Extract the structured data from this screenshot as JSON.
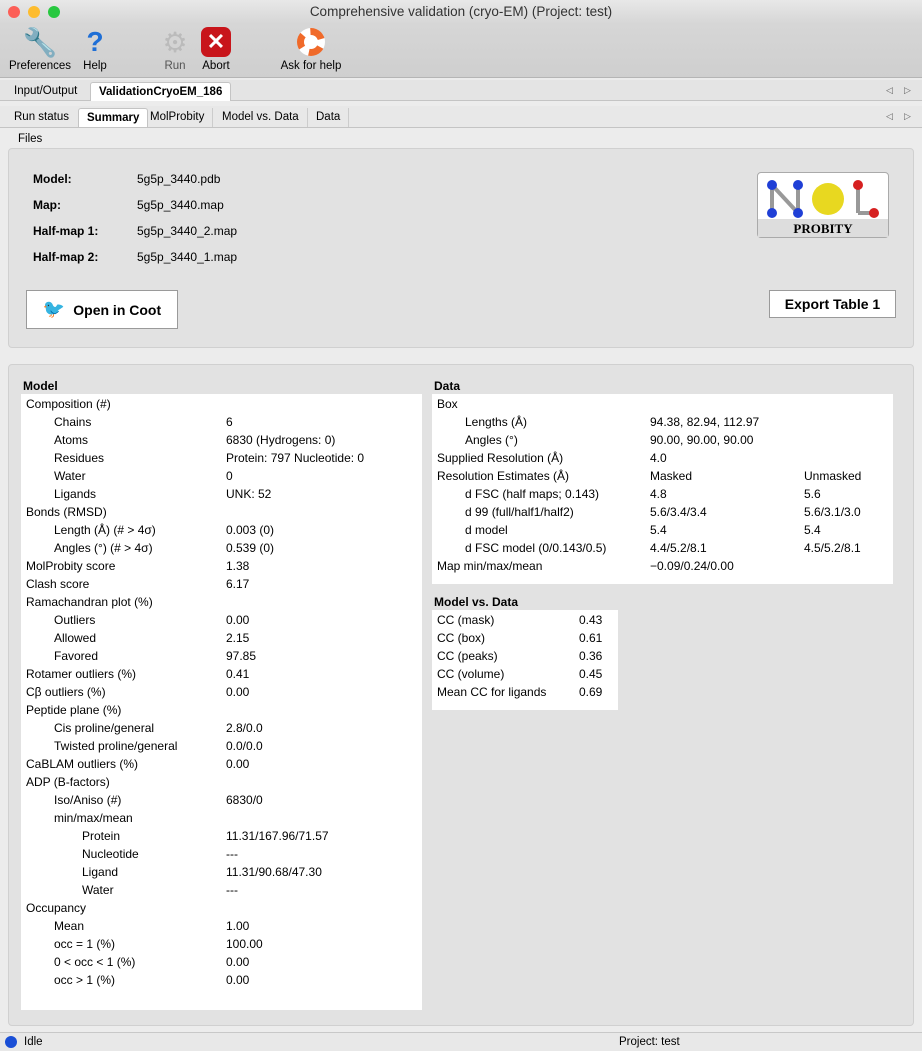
{
  "window": {
    "title": "Comprehensive validation (cryo-EM) (Project: test)"
  },
  "toolbar": {
    "preferences": "Preferences",
    "help": "Help",
    "run": "Run",
    "abort": "Abort",
    "ask": "Ask for help"
  },
  "outer_tabs": [
    "Input/Output",
    "ValidationCryoEM_186"
  ],
  "inner_tabs": [
    "Run status",
    "Summary",
    "MolProbity",
    "Model vs. Data",
    "Data"
  ],
  "files": {
    "title": "Files",
    "rows": [
      [
        "Model:",
        "5g5p_3440.pdb"
      ],
      [
        "Map:",
        "5g5p_3440.map"
      ],
      [
        "Half-map 1:",
        "5g5p_3440_2.map"
      ],
      [
        "Half-map 2:",
        "5g5p_3440_1.map"
      ]
    ],
    "open_coot": "Open in Coot",
    "export": "Export Table 1",
    "logo": "MolProbity"
  },
  "model": {
    "title": "Model",
    "rows": [
      [
        0,
        "Composition (#)",
        ""
      ],
      [
        1,
        "Chains",
        "6"
      ],
      [
        1,
        "Atoms",
        "6830 (Hydrogens: 0)"
      ],
      [
        1,
        "Residues",
        "Protein: 797 Nucleotide: 0"
      ],
      [
        1,
        "Water",
        "0"
      ],
      [
        1,
        "Ligands",
        "UNK: 52"
      ],
      [
        0,
        "Bonds (RMSD)",
        ""
      ],
      [
        1,
        "Length (Å) (# > 4σ)",
        "0.003 (0)"
      ],
      [
        1,
        "Angles (°) (# > 4σ)",
        "0.539 (0)"
      ],
      [
        0,
        "MolProbity score",
        "1.38"
      ],
      [
        0,
        "Clash score",
        "6.17"
      ],
      [
        0,
        "Ramachandran plot (%)",
        ""
      ],
      [
        1,
        "Outliers",
        "0.00"
      ],
      [
        1,
        "Allowed",
        "2.15"
      ],
      [
        1,
        "Favored",
        "97.85"
      ],
      [
        0,
        "Rotamer outliers (%)",
        "0.41"
      ],
      [
        0,
        "Cβ outliers (%)",
        "0.00"
      ],
      [
        0,
        "Peptide plane (%)",
        ""
      ],
      [
        1,
        "Cis proline/general",
        "2.8/0.0"
      ],
      [
        1,
        "Twisted proline/general",
        "0.0/0.0"
      ],
      [
        0,
        "CaBLAM outliers (%)",
        "0.00"
      ],
      [
        0,
        "ADP (B-factors)",
        ""
      ],
      [
        1,
        "Iso/Aniso (#)",
        "6830/0"
      ],
      [
        1,
        "min/max/mean",
        ""
      ],
      [
        2,
        "Protein",
        "11.31/167.96/71.57"
      ],
      [
        2,
        "Nucleotide",
        "---"
      ],
      [
        2,
        "Ligand",
        "11.31/90.68/47.30"
      ],
      [
        2,
        "Water",
        "---"
      ],
      [
        0,
        "Occupancy",
        ""
      ],
      [
        1,
        "Mean",
        "1.00"
      ],
      [
        1,
        "occ = 1 (%)",
        "100.00"
      ],
      [
        1,
        "0 < occ < 1 (%)",
        "0.00"
      ],
      [
        1,
        "occ > 1 (%)",
        "0.00"
      ]
    ]
  },
  "data": {
    "title": "Data",
    "rows": [
      [
        0,
        "Box",
        "",
        ""
      ],
      [
        1,
        "Lengths (Å)",
        "94.38, 82.94, 112.97",
        ""
      ],
      [
        1,
        "Angles (°)",
        "90.00, 90.00, 90.00",
        ""
      ],
      [
        0,
        "Supplied Resolution (Å)",
        "4.0",
        ""
      ],
      [
        0,
        "Resolution Estimates (Å)",
        "Masked",
        "Unmasked"
      ],
      [
        1,
        "d FSC (half maps; 0.143)",
        "4.8",
        "5.6"
      ],
      [
        1,
        "d 99 (full/half1/half2)",
        "5.6/3.4/3.4",
        "5.6/3.1/3.0"
      ],
      [
        1,
        "d model",
        "5.4",
        "5.4"
      ],
      [
        1,
        "d FSC model (0/0.143/0.5)",
        "4.4/5.2/8.1",
        "4.5/5.2/8.1"
      ],
      [
        0,
        "Map min/max/mean",
        "−0.09/0.24/0.00",
        ""
      ]
    ]
  },
  "model_vs_data": {
    "title": "Model vs. Data",
    "rows": [
      [
        "CC (mask)",
        "0.43"
      ],
      [
        "CC (box)",
        "0.61"
      ],
      [
        "CC (peaks)",
        "0.36"
      ],
      [
        "CC (volume)",
        "0.45"
      ],
      [
        "Mean CC for ligands",
        "0.69"
      ]
    ]
  },
  "status": {
    "text": "Idle",
    "project": "Project: test",
    "indicator_color": "#1a4fd6"
  }
}
